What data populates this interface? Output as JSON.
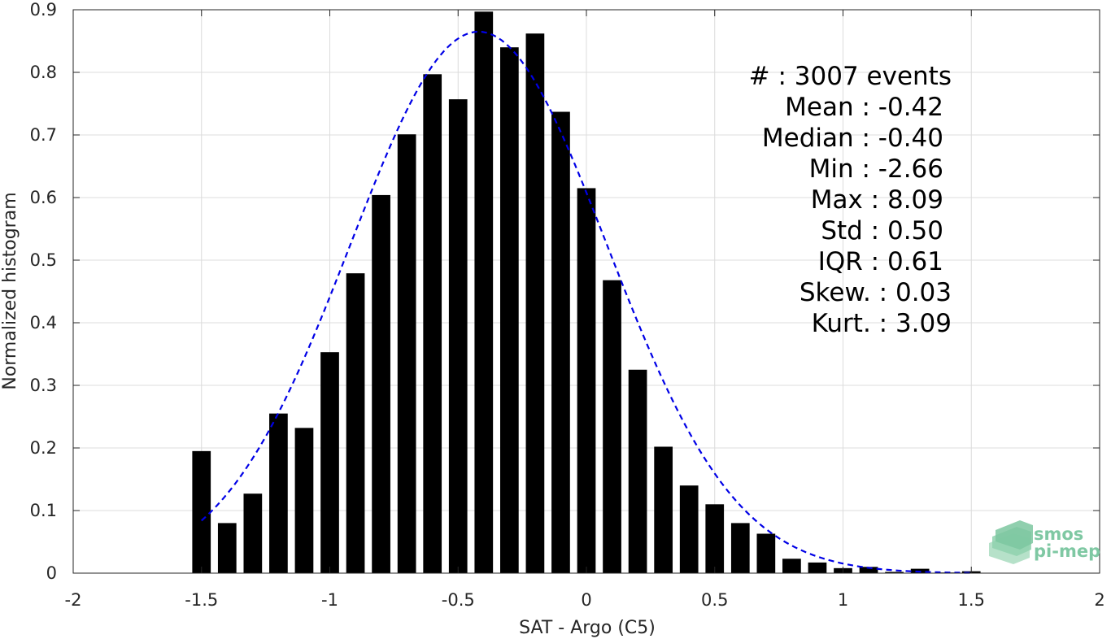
{
  "chart_data": {
    "type": "bar",
    "xlabel": "SAT - Argo (C5)",
    "ylabel": "Normalized histogram",
    "xlim": [
      -2,
      2
    ],
    "ylim": [
      0,
      0.9
    ],
    "x_ticks": [
      -2,
      -1.5,
      -1,
      -0.5,
      0,
      0.5,
      1,
      1.5,
      2
    ],
    "x_tick_labels": [
      "-2",
      "-1.5",
      "-1",
      "-0.5",
      "0",
      "0.5",
      "1",
      "1.5",
      "2"
    ],
    "y_ticks": [
      0,
      0.1,
      0.2,
      0.3,
      0.4,
      0.5,
      0.6,
      0.7,
      0.8,
      0.9
    ],
    "y_tick_labels": [
      "0",
      "0.1",
      "0.2",
      "0.3",
      "0.4",
      "0.5",
      "0.6",
      "0.7",
      "0.8",
      "0.9"
    ],
    "grid": true,
    "bar_color": "#000000",
    "fit_color": "#0000e6",
    "bins": [
      {
        "x": -1.5,
        "y": 0.195
      },
      {
        "x": -1.4,
        "y": 0.08
      },
      {
        "x": -1.3,
        "y": 0.127
      },
      {
        "x": -1.2,
        "y": 0.255
      },
      {
        "x": -1.1,
        "y": 0.232
      },
      {
        "x": -1.0,
        "y": 0.353
      },
      {
        "x": -0.9,
        "y": 0.479
      },
      {
        "x": -0.8,
        "y": 0.604
      },
      {
        "x": -0.7,
        "y": 0.701
      },
      {
        "x": -0.6,
        "y": 0.797
      },
      {
        "x": -0.5,
        "y": 0.757
      },
      {
        "x": -0.4,
        "y": 0.897
      },
      {
        "x": -0.3,
        "y": 0.84
      },
      {
        "x": -0.2,
        "y": 0.862
      },
      {
        "x": -0.1,
        "y": 0.737
      },
      {
        "x": 0.0,
        "y": 0.615
      },
      {
        "x": 0.1,
        "y": 0.468
      },
      {
        "x": 0.2,
        "y": 0.325
      },
      {
        "x": 0.3,
        "y": 0.202
      },
      {
        "x": 0.4,
        "y": 0.14
      },
      {
        "x": 0.5,
        "y": 0.11
      },
      {
        "x": 0.6,
        "y": 0.08
      },
      {
        "x": 0.7,
        "y": 0.063
      },
      {
        "x": 0.8,
        "y": 0.023
      },
      {
        "x": 0.9,
        "y": 0.017
      },
      {
        "x": 1.0,
        "y": 0.008
      },
      {
        "x": 1.1,
        "y": 0.01
      },
      {
        "x": 1.2,
        "y": 0.002
      },
      {
        "x": 1.3,
        "y": 0.007
      },
      {
        "x": 1.4,
        "y": 0.001
      },
      {
        "x": 1.5,
        "y": 0.003
      }
    ],
    "normal_fit": {
      "mean": -0.42,
      "std": 0.5,
      "peak": 0.865,
      "x_range": [
        -1.5,
        1.5
      ]
    }
  },
  "stats": {
    "events": "#  : 3007 events",
    "mean": "Mean : -0.42",
    "median": "Median : -0.40",
    "min": "Min : -2.66",
    "max": "Max : 8.09",
    "std": "Std : 0.50",
    "iqr": "IQR : 0.61",
    "skew": "Skew. : 0.03",
    "kurt": "Kurt. : 3.09"
  },
  "logo": {
    "line1": "smos",
    "line2": "pi-mep"
  }
}
